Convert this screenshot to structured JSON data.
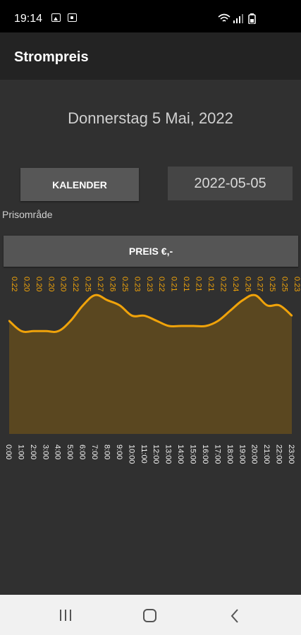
{
  "status_bar": {
    "time": "19:14"
  },
  "app_bar": {
    "title": "Strompreis"
  },
  "date_title": "Donnerstag 5 Mai, 2022",
  "calendar_button": {
    "label": "KALENDER"
  },
  "date_field": {
    "value": "2022-05-05"
  },
  "price_area_label": "Prisområde",
  "price_button": {
    "label": "PREIS €,-"
  },
  "colors": {
    "accent": "#f0a30a",
    "fill": "#5a4720",
    "background": "#303030"
  },
  "chart_data": {
    "type": "area",
    "x": [
      "0:00",
      "1:00",
      "2:00",
      "3:00",
      "4:00",
      "5:00",
      "6:00",
      "7:00",
      "8:00",
      "9:00",
      "10:00",
      "11:00",
      "12:00",
      "13:00",
      "14:00",
      "15:00",
      "16:00",
      "17:00",
      "18:00",
      "19:00",
      "20:00",
      "21:00",
      "22:00",
      "23:00"
    ],
    "values": [
      0.22,
      0.2,
      0.2,
      0.2,
      0.2,
      0.22,
      0.25,
      0.27,
      0.26,
      0.25,
      0.23,
      0.23,
      0.22,
      0.21,
      0.21,
      0.21,
      0.21,
      0.22,
      0.24,
      0.26,
      0.27,
      0.25,
      0.25,
      0.23
    ],
    "labels": [
      "0.22",
      "0.20",
      "0.20",
      "0.20",
      "0.20",
      "0.22",
      "0.25",
      "0.27",
      "0.26",
      "0.25",
      "0.23",
      "0.23",
      "0.22",
      "0.21",
      "0.21",
      "0.21",
      "0.21",
      "0.22",
      "0.24",
      "0.26",
      "0.27",
      "0.25",
      "0.25",
      "0.23"
    ],
    "xlabel": "",
    "ylabel": "",
    "ylim": [
      0.0,
      0.28
    ],
    "grid": false,
    "legend": "none"
  }
}
